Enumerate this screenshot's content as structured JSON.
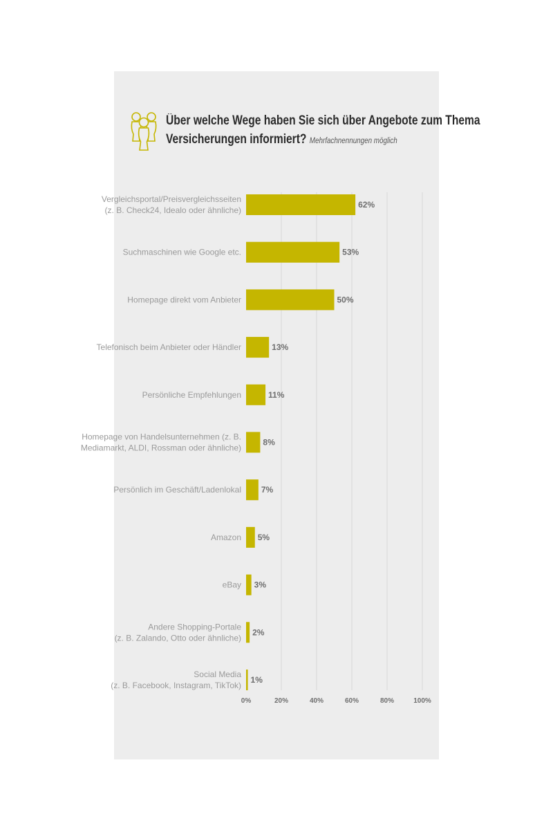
{
  "title": {
    "main_line1": "Über welche Wege haben Sie sich über Angebote zum Thema",
    "main_line2": "Versicherungen informiert?",
    "note": "Mehrfachnennungen möglich",
    "icon": "people-group-icon"
  },
  "colors": {
    "bar": "#c5b600",
    "background": "#ededed",
    "grid": "#d6d6d6"
  },
  "chart_data": {
    "type": "bar",
    "orientation": "horizontal",
    "categories": [
      [
        "Vergleichsportal/Preisvergleichsseiten",
        "(z. B. Check24, Idealo oder ähnliche)"
      ],
      [
        "Suchmaschinen wie Google etc."
      ],
      [
        "Homepage direkt vom Anbieter"
      ],
      [
        "Telefonisch beim Anbieter oder Händler"
      ],
      [
        "Persönliche Empfehlungen"
      ],
      [
        "Homepage von Handelsunternehmen (z. B.",
        "Mediamarkt, ALDI, Rossman oder ähnliche)"
      ],
      [
        "Persönlich im Geschäft/Ladenlokal"
      ],
      [
        "Amazon"
      ],
      [
        "eBay"
      ],
      [
        "Andere Shopping-Portale",
        "(z. B. Zalando, Otto oder ähnliche)"
      ],
      [
        "Social Media",
        "(z. B. Facebook, Instagram, TikTok)"
      ]
    ],
    "values": [
      62,
      53,
      50,
      13,
      11,
      8,
      7,
      5,
      3,
      2,
      1
    ],
    "value_labels": [
      "62%",
      "53%",
      "50%",
      "13%",
      "11%",
      "8%",
      "7%",
      "5%",
      "3%",
      "2%",
      "1%"
    ],
    "xlim": [
      0,
      100
    ],
    "xticks": [
      0,
      20,
      40,
      60,
      80,
      100
    ],
    "xtick_labels": [
      "0%",
      "20%",
      "40%",
      "60%",
      "80%",
      "100%"
    ],
    "grid": true
  }
}
